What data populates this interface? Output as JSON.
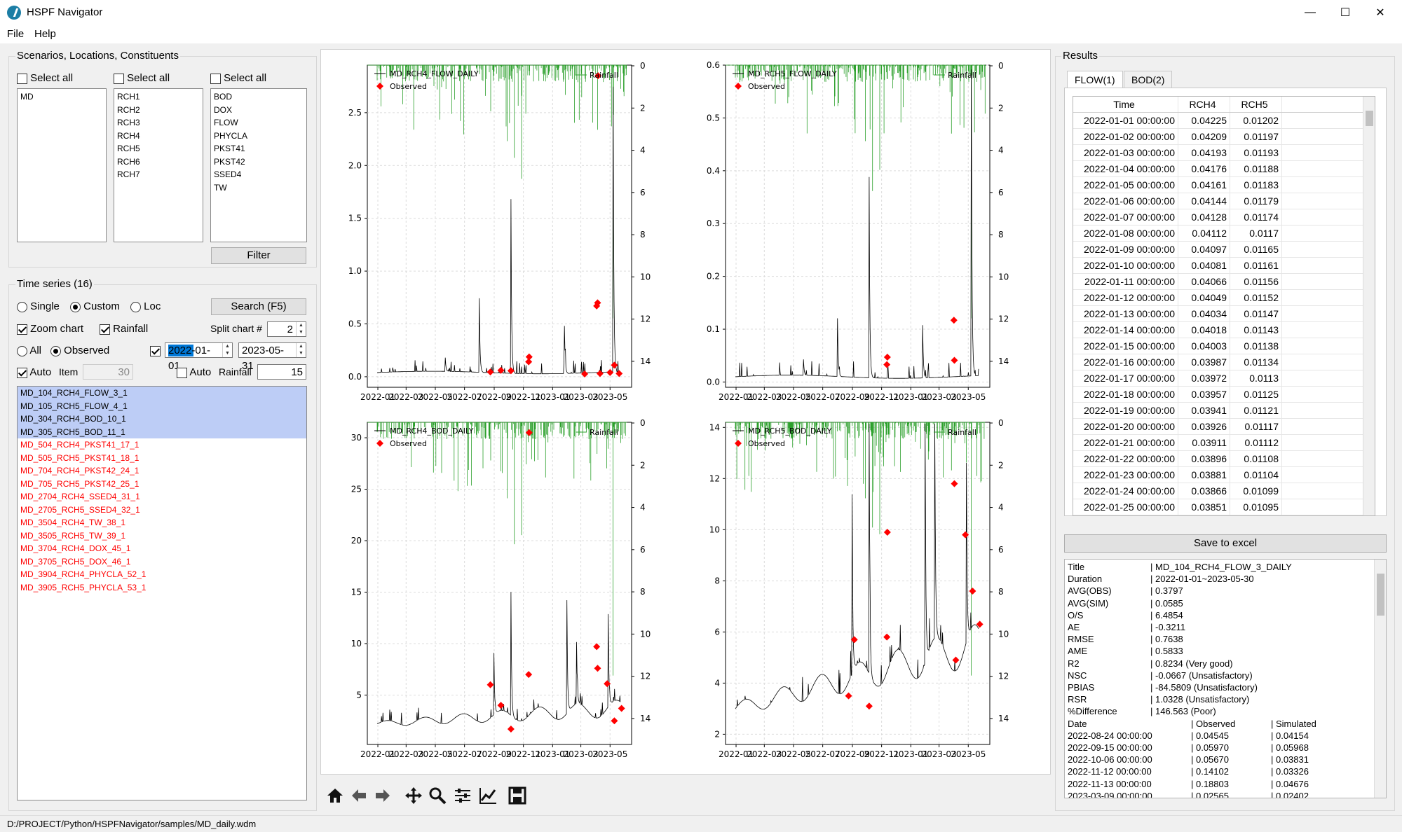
{
  "window": {
    "title": "HSPF Navigator",
    "minimize": "—",
    "maximize": "☐",
    "close": "✕"
  },
  "menu": [
    "File",
    "Help"
  ],
  "scenarios_group": {
    "title": "Scenarios, Locations, Constituents",
    "select_all": "Select all",
    "scenarios": [
      "MD"
    ],
    "locations": [
      "RCH1",
      "RCH2",
      "RCH3",
      "RCH4",
      "RCH5",
      "RCH6",
      "RCH7"
    ],
    "constituents": [
      "BOD",
      "DOX",
      "FLOW",
      "PHYCLA",
      "PKST41",
      "PKST42",
      "SSED4",
      "TW"
    ],
    "filter_button": "Filter"
  },
  "timeseries_group": {
    "title": "Time series (16)",
    "mode_single": "Single",
    "mode_custom": "Custom",
    "mode_loc": "Loc",
    "search_button": "Search (F5)",
    "zoom_chart": "Zoom chart",
    "rainfall": "Rainfall",
    "split_chart_label": "Split chart #",
    "split_chart_value": "2",
    "all_label": "All",
    "observed_label": "Observed",
    "start_date": "2022-01-01",
    "end_date": "2023-05-31",
    "auto_label": "Auto",
    "item_label": "Item",
    "item_value": "30",
    "rainfall_label": "Rainfall",
    "rainfall_value": "15",
    "items_selected": [
      "MD_104_RCH4_FLOW_3_1",
      "MD_105_RCH5_FLOW_4_1",
      "MD_304_RCH4_BOD_10_1",
      "MD_305_RCH5_BOD_11_1"
    ],
    "items_other": [
      "MD_504_RCH4_PKST41_17_1",
      "MD_505_RCH5_PKST41_18_1",
      "MD_704_RCH4_PKST42_24_1",
      "MD_705_RCH5_PKST42_25_1",
      "MD_2704_RCH4_SSED4_31_1",
      "MD_2705_RCH5_SSED4_32_1",
      "MD_3504_RCH4_TW_38_1",
      "MD_3505_RCH5_TW_39_1",
      "MD_3704_RCH4_DOX_45_1",
      "MD_3705_RCH5_DOX_46_1",
      "MD_3904_RCH4_PHYCLA_52_1",
      "MD_3905_RCH5_PHYCLA_53_1"
    ]
  },
  "toolbar_icons": [
    "home-icon",
    "back-arrow-icon",
    "forward-arrow-icon",
    "pan-icon",
    "zoom-icon",
    "configure-icon",
    "edit-lines-icon",
    "save-icon"
  ],
  "chart_data": [
    {
      "type": "line",
      "series": [
        {
          "name": "MD_RCH4_FLOW_DAILY",
          "color": "#000000"
        },
        {
          "name": "Observed",
          "color": "#ff0000",
          "marker": "diamond",
          "points": [
            [
              "2022-08-24",
              0.045
            ],
            [
              "2022-09-15",
              0.06
            ],
            [
              "2022-10-06",
              0.057
            ],
            [
              "2022-11-12",
              0.141
            ],
            [
              "2022-11-13",
              0.188
            ],
            [
              "2023-03-09",
              0.026
            ],
            [
              "2023-04-03",
              0.67
            ],
            [
              "2023-04-05",
              0.7
            ],
            [
              "2023-04-10",
              0.03
            ],
            [
              "2023-05-01",
              0.04
            ],
            [
              "2023-05-10",
              0.11
            ],
            [
              "2023-05-20",
              0.03
            ],
            [
              "2023-04-06",
              2.85
            ]
          ]
        },
        {
          "name": "Rainfall",
          "color": "#2ca02c",
          "axis": "right-inverted"
        }
      ],
      "x_ticks": [
        "2022-01",
        "2022-03",
        "2022-05",
        "2022-07",
        "2022-09",
        "2022-11",
        "2023-01",
        "2023-03",
        "2023-05"
      ],
      "y_ticks": [
        "0.0",
        "0.5",
        "1.0",
        "1.5",
        "2.0",
        "2.5"
      ],
      "ylim": [
        -0.1,
        2.95
      ],
      "y2_ticks": [
        "0",
        "2",
        "4",
        "6",
        "8",
        "10",
        "12",
        "14"
      ],
      "grid": true,
      "legend": "top-left / top-right"
    },
    {
      "type": "line",
      "series": [
        {
          "name": "MD_RCH5_FLOW_DAILY",
          "color": "#000000"
        },
        {
          "name": "Observed",
          "color": "#ff0000",
          "marker": "diamond",
          "points": [
            [
              "2022-11-12",
              0.033
            ],
            [
              "2022-11-13",
              0.047
            ],
            [
              "2023-04-01",
              0.117
            ],
            [
              "2023-04-02",
              0.041
            ]
          ]
        },
        {
          "name": "Rainfall",
          "color": "#2ca02c",
          "axis": "right-inverted"
        }
      ],
      "x_ticks": [
        "2022-01",
        "2022-03",
        "2022-05",
        "2022-07",
        "2022-09",
        "2022-11",
        "2023-01",
        "2023-03",
        "2023-05"
      ],
      "y_ticks": [
        "0.0",
        "0.1",
        "0.2",
        "0.3",
        "0.4",
        "0.5",
        "0.6"
      ],
      "ylim": [
        -0.01,
        0.6
      ],
      "y2_ticks": [
        "0",
        "2",
        "4",
        "6",
        "8",
        "10",
        "12",
        "14"
      ],
      "grid": true
    },
    {
      "type": "line",
      "series": [
        {
          "name": "MD_RCH4_BOD_DAILY",
          "color": "#000000"
        },
        {
          "name": "Observed",
          "color": "#ff0000",
          "marker": "diamond",
          "points": [
            [
              "2022-08-24",
              6.0
            ],
            [
              "2022-09-15",
              4.0
            ],
            [
              "2022-10-06",
              1.7
            ],
            [
              "2022-11-12",
              7.0
            ],
            [
              "2022-11-13",
              30.5
            ],
            [
              "2023-04-03",
              9.7
            ],
            [
              "2023-04-05",
              7.6
            ],
            [
              "2023-04-25",
              6.1
            ],
            [
              "2023-05-10",
              2.5
            ],
            [
              "2023-05-25",
              3.7
            ]
          ]
        },
        {
          "name": "Rainfall",
          "color": "#2ca02c",
          "axis": "right-inverted"
        }
      ],
      "x_ticks": [
        "2022-01",
        "2022-03",
        "2022-05",
        "2022-07",
        "2022-09",
        "2022-11",
        "2023-01",
        "2023-03",
        "2023-05"
      ],
      "y_ticks": [
        "5",
        "10",
        "15",
        "20",
        "25",
        "30"
      ],
      "ylim": [
        0.2,
        31.5
      ],
      "y2_ticks": [
        "0",
        "2",
        "4",
        "6",
        "8",
        "10",
        "12",
        "14"
      ],
      "grid": true
    },
    {
      "type": "line",
      "series": [
        {
          "name": "MD_RCH5_BOD_DAILY",
          "color": "#000000"
        },
        {
          "name": "Observed",
          "color": "#ff0000",
          "marker": "diamond",
          "points": [
            [
              "2022-08-24",
              3.5
            ],
            [
              "2022-09-05",
              5.7
            ],
            [
              "2022-10-06",
              3.1
            ],
            [
              "2022-11-12",
              5.8
            ],
            [
              "2022-11-13",
              9.9
            ],
            [
              "2023-04-02",
              11.8
            ],
            [
              "2023-04-05",
              4.9
            ],
            [
              "2023-04-25",
              9.8
            ],
            [
              "2023-05-10",
              7.6
            ],
            [
              "2023-05-25",
              6.3
            ]
          ]
        },
        {
          "name": "Rainfall",
          "color": "#2ca02c",
          "axis": "right-inverted"
        }
      ],
      "x_ticks": [
        "2022-01",
        "2022-03",
        "2022-05",
        "2022-07",
        "2022-09",
        "2022-11",
        "2023-01",
        "2023-03",
        "2023-05"
      ],
      "y_ticks": [
        "2",
        "4",
        "6",
        "8",
        "10",
        "12",
        "14"
      ],
      "ylim": [
        1.6,
        14.2
      ],
      "y2_ticks": [
        "0",
        "2",
        "4",
        "6",
        "8",
        "10",
        "12",
        "14"
      ],
      "grid": true
    }
  ],
  "results": {
    "title": "Results",
    "tabs": [
      "FLOW(1)",
      "BOD(2)"
    ],
    "columns": [
      "Time",
      "RCH4",
      "RCH5"
    ],
    "rows": [
      [
        "2022-01-01 00:00:00",
        "0.04225",
        "0.01202"
      ],
      [
        "2022-01-02 00:00:00",
        "0.04209",
        "0.01197"
      ],
      [
        "2022-01-03 00:00:00",
        "0.04193",
        "0.01193"
      ],
      [
        "2022-01-04 00:00:00",
        "0.04176",
        "0.01188"
      ],
      [
        "2022-01-05 00:00:00",
        "0.04161",
        "0.01183"
      ],
      [
        "2022-01-06 00:00:00",
        "0.04144",
        "0.01179"
      ],
      [
        "2022-01-07 00:00:00",
        "0.04128",
        "0.01174"
      ],
      [
        "2022-01-08 00:00:00",
        "0.04112",
        "0.0117"
      ],
      [
        "2022-01-09 00:00:00",
        "0.04097",
        "0.01165"
      ],
      [
        "2022-01-10 00:00:00",
        "0.04081",
        "0.01161"
      ],
      [
        "2022-01-11 00:00:00",
        "0.04066",
        "0.01156"
      ],
      [
        "2022-01-12 00:00:00",
        "0.04049",
        "0.01152"
      ],
      [
        "2022-01-13 00:00:00",
        "0.04034",
        "0.01147"
      ],
      [
        "2022-01-14 00:00:00",
        "0.04018",
        "0.01143"
      ],
      [
        "2022-01-15 00:00:00",
        "0.04003",
        "0.01138"
      ],
      [
        "2022-01-16 00:00:00",
        "0.03987",
        "0.01134"
      ],
      [
        "2022-01-17 00:00:00",
        "0.03972",
        "0.0113"
      ],
      [
        "2022-01-18 00:00:00",
        "0.03957",
        "0.01125"
      ],
      [
        "2022-01-19 00:00:00",
        "0.03941",
        "0.01121"
      ],
      [
        "2022-01-20 00:00:00",
        "0.03926",
        "0.01117"
      ],
      [
        "2022-01-21 00:00:00",
        "0.03911",
        "0.01112"
      ],
      [
        "2022-01-22 00:00:00",
        "0.03896",
        "0.01108"
      ],
      [
        "2022-01-23 00:00:00",
        "0.03881",
        "0.01104"
      ],
      [
        "2022-01-24 00:00:00",
        "0.03866",
        "0.01099"
      ],
      [
        "2022-01-25 00:00:00",
        "0.03851",
        "0.01095"
      ]
    ],
    "save_button": "Save to excel",
    "stats": [
      [
        "Title",
        "| MD_104_RCH4_FLOW_3_DAILY"
      ],
      [
        "Duration",
        "| 2022-01-01~2023-05-30"
      ],
      [
        "AVG(OBS)",
        "| 0.3797"
      ],
      [
        "AVG(SIM)",
        "| 0.0585"
      ],
      [
        "O/S",
        "| 6.4854"
      ],
      [
        "AE",
        "| -0.3211"
      ],
      [
        "RMSE",
        "| 0.7638"
      ],
      [
        "AME",
        "| 0.5833"
      ],
      [
        "R2",
        "| 0.8234  (Very good)"
      ],
      [
        "NSC",
        "| -0.0667  (Unsatisfactory)"
      ],
      [
        "PBIAS",
        "| -84.5809  (Unsatisfactory)"
      ],
      [
        "RSR",
        "| 1.0328  (Unsatisfactory)"
      ],
      [
        "%Difference",
        "| 146.563  (Poor)"
      ]
    ],
    "stats_table_header": [
      "Date",
      "| Observed",
      "| Simulated"
    ],
    "stats_table_rows": [
      [
        "2022-08-24 00:00:00",
        "| 0.04545",
        "| 0.04154"
      ],
      [
        "2022-09-15 00:00:00",
        "| 0.05970",
        "| 0.05968"
      ],
      [
        "2022-10-06 00:00:00",
        "| 0.05670",
        "| 0.03831"
      ],
      [
        "2022-11-12 00:00:00",
        "| 0.14102",
        "| 0.03326"
      ],
      [
        "2022-11-13 00:00:00",
        "| 0.18803",
        "| 0.04676"
      ],
      [
        "2023-03-09 00:00:00",
        "| 0.02565",
        "| 0.02402"
      ]
    ]
  },
  "status": "D:/PROJECT/Python/HSPFNavigator/samples/MD_daily.wdm"
}
